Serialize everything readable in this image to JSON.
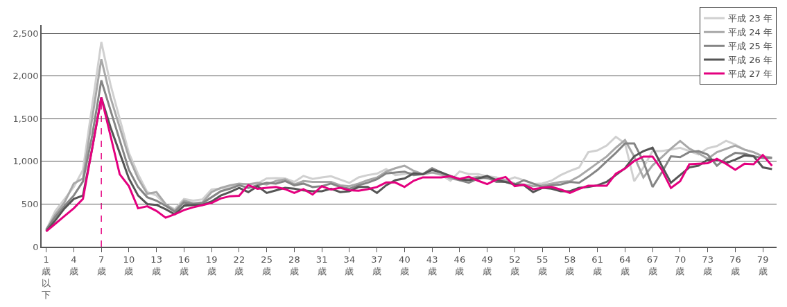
{
  "chart_data": {
    "type": "line",
    "categories": [
      "1歳以下",
      null,
      null,
      "4歳",
      null,
      null,
      "7歳",
      null,
      null,
      "10歳",
      null,
      null,
      "13歳",
      null,
      null,
      "16歳",
      null,
      null,
      "19歳",
      null,
      null,
      "22歳",
      null,
      null,
      "25歳",
      null,
      null,
      "28歳",
      null,
      null,
      "31歳",
      null,
      null,
      "34歳",
      null,
      null,
      "37歳",
      null,
      null,
      "40歳",
      null,
      null,
      "43歳",
      null,
      null,
      "46歳",
      null,
      null,
      "49歳",
      null,
      null,
      "52歳",
      null,
      null,
      "55歳",
      null,
      null,
      "58歳",
      null,
      null,
      "61歳",
      null,
      null,
      "64歳",
      null,
      null,
      "67歳",
      null,
      null,
      "70歳",
      null,
      null,
      "73歳",
      null,
      null,
      "76歳",
      null,
      null,
      "79歳",
      null
    ],
    "series": [
      {
        "name": "平成 23 年",
        "color": "#d0d0d0",
        "values": [
          200,
          420,
          560,
          700,
          900,
          1650,
          2400,
          1900,
          1500,
          1100,
          850,
          640,
          600,
          490,
          440,
          560,
          540,
          555,
          670,
          683,
          696,
          735,
          735,
          740,
          800,
          805,
          800,
          760,
          830,
          795,
          813,
          826,
          787,
          748,
          813,
          840,
          857,
          910,
          840,
          852,
          873,
          852,
          873,
          840,
          774,
          883,
          852,
          852,
          826,
          813,
          774,
          813,
          779,
          735,
          742,
          774,
          840,
          889,
          928,
          1108,
          1129,
          1186,
          1289,
          1211,
          768,
          928,
          1121,
          1121,
          1139,
          1160,
          1121,
          1082,
          1155,
          1180,
          1242,
          1198,
          1139,
          1108,
          1062,
          1044
        ]
      },
      {
        "name": "平成 24 年",
        "color": "#a8a8a8",
        "values": [
          190,
          380,
          520,
          740,
          800,
          1500,
          2200,
          1750,
          1400,
          1050,
          800,
          620,
          640,
          500,
          420,
          540,
          510,
          520,
          640,
          690,
          720,
          740,
          730,
          750,
          730,
          770,
          790,
          730,
          770,
          760,
          760,
          760,
          720,
          710,
          740,
          780,
          810,
          880,
          920,
          950,
          890,
          850,
          870,
          850,
          800,
          780,
          800,
          820,
          800,
          790,
          780,
          740,
          730,
          710,
          720,
          740,
          760,
          768,
          825,
          902,
          980,
          1057,
          1160,
          1250,
          1057,
          812,
          954,
          1050,
          1150,
          1240,
          1150,
          1095,
          1031,
          1108,
          1147,
          1186,
          1139,
          1108,
          1057,
          1044
        ]
      },
      {
        "name": "平成 25 年",
        "color": "#858585",
        "values": [
          200,
          350,
          480,
          600,
          765,
          1300,
          1950,
          1600,
          1250,
          900,
          700,
          580,
          540,
          480,
          410,
          520,
          500,
          510,
          580,
          650,
          680,
          720,
          690,
          720,
          750,
          740,
          770,
          720,
          740,
          700,
          710,
          740,
          700,
          680,
          720,
          750,
          790,
          860,
          870,
          880,
          840,
          850,
          920,
          870,
          820,
          780,
          750,
          800,
          810,
          760,
          760,
          730,
          780,
          740,
          700,
          720,
          730,
          760,
          750,
          820,
          900,
          1000,
          1100,
          1210,
          1210,
          1000,
          700,
          870,
          1060,
          1050,
          1110,
          1120,
          1080,
          950,
          1040,
          1100,
          1090,
          1060,
          1040,
          1040
        ]
      },
      {
        "name": "平成 26 年",
        "color": "#555555",
        "values": [
          180,
          310,
          450,
          560,
          600,
          1150,
          1750,
          1400,
          1100,
          800,
          600,
          500,
          490,
          440,
          380,
          480,
          490,
          490,
          530,
          600,
          640,
          690,
          640,
          710,
          630,
          660,
          690,
          680,
          660,
          650,
          650,
          680,
          640,
          650,
          700,
          700,
          630,
          720,
          780,
          800,
          860,
          850,
          900,
          870,
          830,
          790,
          780,
          800,
          830,
          780,
          760,
          730,
          720,
          640,
          690,
          680,
          650,
          650,
          690,
          700,
          720,
          760,
          840,
          920,
          1060,
          1120,
          1160,
          950,
          750,
          840,
          930,
          950,
          1020,
          1020,
          980,
          1020,
          1070,
          1060,
          930,
          910
        ]
      },
      {
        "name": "平成 27 年",
        "color": "#e4007f",
        "values": [
          180,
          270,
          360,
          450,
          560,
          1150,
          1750,
          1300,
          850,
          710,
          450,
          475,
          420,
          340,
          380,
          430,
          462,
          487,
          513,
          566,
          592,
          597,
          722,
          678,
          690,
          700,
          675,
          630,
          675,
          612,
          709,
          670,
          690,
          662,
          657,
          675,
          700,
          753,
          753,
          700,
          774,
          813,
          813,
          813,
          826,
          795,
          820,
          774,
          735,
          787,
          818,
          709,
          727,
          675,
          690,
          700,
          670,
          631,
          678,
          714,
          714,
          714,
          856,
          915,
          1005,
          1057,
          1057,
          902,
          688,
          768,
          967,
          972,
          979,
          1031,
          972,
          902,
          972,
          967,
          1075,
          948
        ]
      }
    ],
    "ylim": [
      0,
      2600
    ],
    "yticks": [
      0,
      500,
      {
        "value": 1000,
        "label": "1,000"
      },
      {
        "value": 1500,
        "label": "1,500"
      },
      {
        "value": 2000,
        "label": "2,000"
      },
      {
        "value": 2500,
        "label": "2,500"
      }
    ],
    "grid": "y",
    "legend": "top right",
    "ref_lines": [
      {
        "axis": "x",
        "value": "7歳",
        "color": "#e4007f",
        "line_style": "dashed"
      }
    ]
  }
}
